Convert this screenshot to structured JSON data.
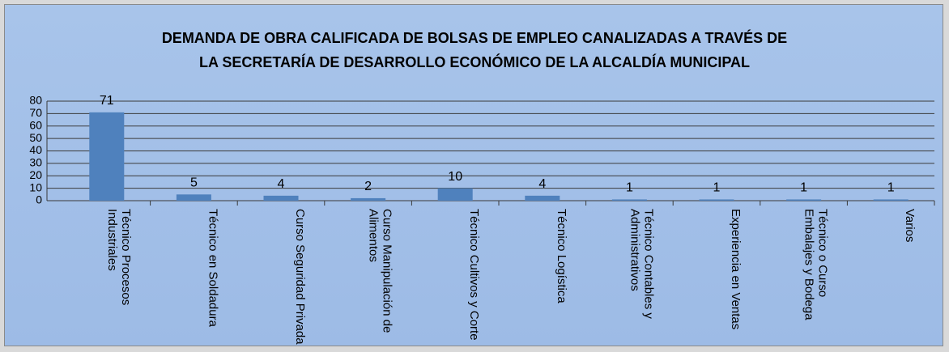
{
  "chart_data": {
    "type": "bar",
    "title": [
      "DEMANDA DE OBRA CALIFICADA DE BOLSAS DE EMPLEO CANALIZADAS A TRAVÉS DE",
      "LA SECRETARÍA DE DESARROLLO ECONÓMICO DE LA ALCALDÍA MUNICIPAL"
    ],
    "categories": [
      "Técnico Procesos Industriales",
      "Técnico en Soldadura",
      "Curso Seguridad Privada",
      "Curso Manipulación de Alimentos",
      "Técnico Cultivos y Corte",
      "Técnico Logística",
      "Técnico Contables y Administrativos",
      "Experiencia en Ventas",
      "Técnico o Curso Embalajes y Bodega",
      "Varios"
    ],
    "values": [
      71,
      5,
      4,
      2,
      10,
      4,
      1,
      1,
      1,
      1
    ],
    "color": "#4f81bd",
    "ylim": [
      0,
      80
    ],
    "yticks": [
      0,
      10,
      20,
      30,
      40,
      50,
      60,
      70,
      80
    ],
    "grid": true
  }
}
